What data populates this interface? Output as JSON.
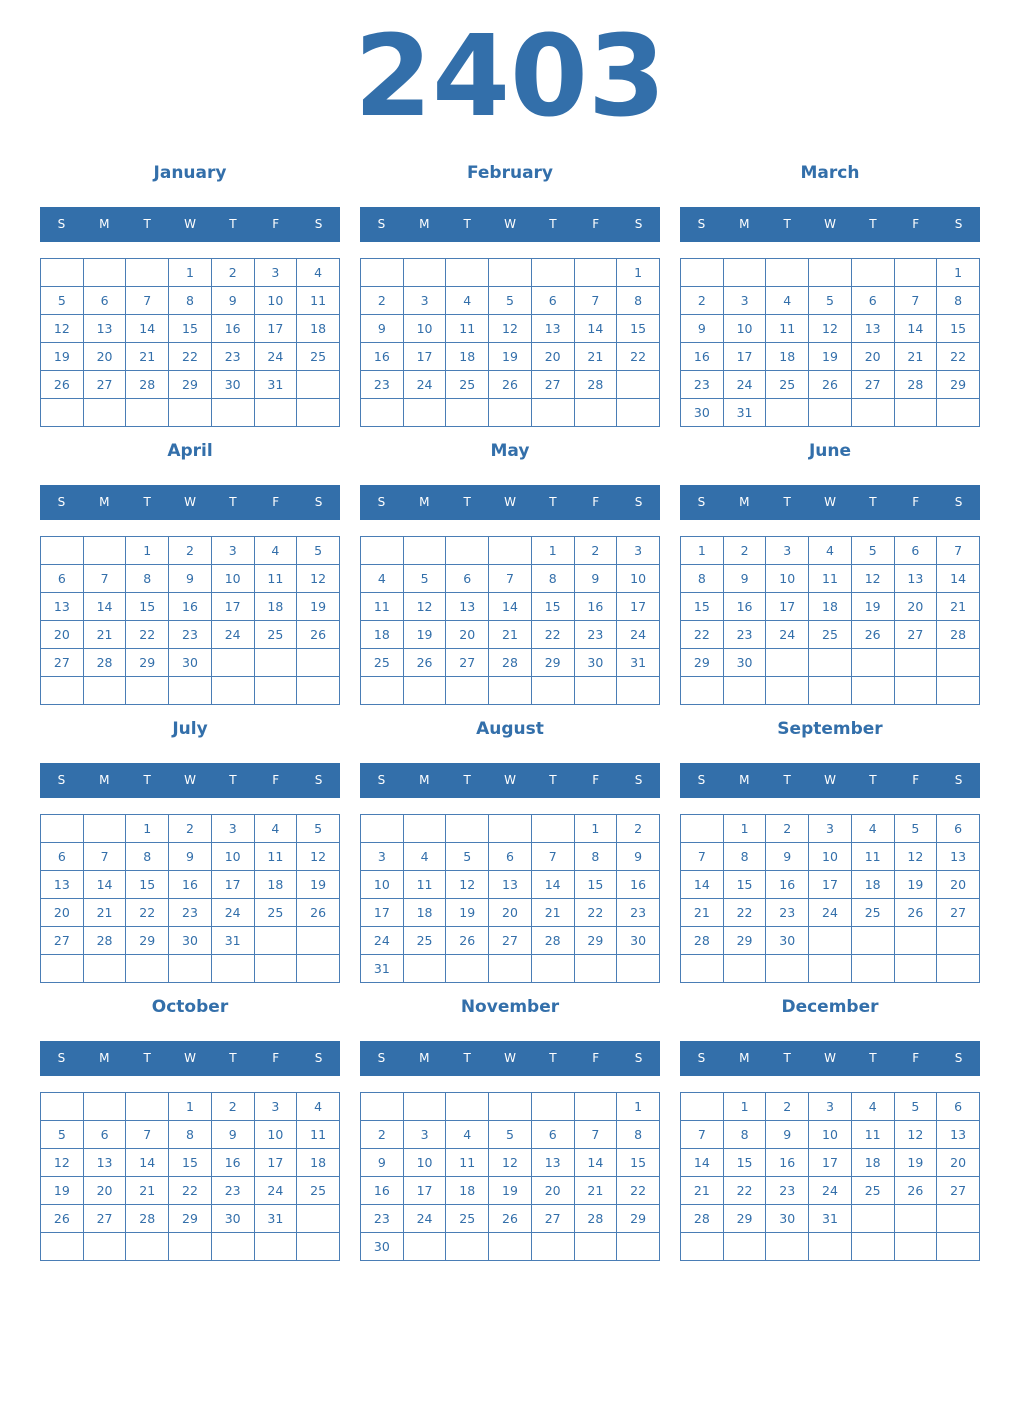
{
  "year": "2403",
  "weekdays": [
    "S",
    "M",
    "T",
    "W",
    "T",
    "F",
    "S"
  ],
  "colors": {
    "accent": "#336faa"
  },
  "months": [
    {
      "name": "January",
      "weeks": [
        [
          "",
          "",
          "",
          1,
          2,
          3,
          4
        ],
        [
          5,
          6,
          7,
          8,
          9,
          10,
          11
        ],
        [
          12,
          13,
          14,
          15,
          16,
          17,
          18
        ],
        [
          19,
          20,
          21,
          22,
          23,
          24,
          25
        ],
        [
          26,
          27,
          28,
          29,
          30,
          31,
          ""
        ],
        [
          "",
          "",
          "",
          "",
          "",
          "",
          ""
        ]
      ]
    },
    {
      "name": "February",
      "weeks": [
        [
          "",
          "",
          "",
          "",
          "",
          "",
          1
        ],
        [
          2,
          3,
          4,
          5,
          6,
          7,
          8
        ],
        [
          9,
          10,
          11,
          12,
          13,
          14,
          15
        ],
        [
          16,
          17,
          18,
          19,
          20,
          21,
          22
        ],
        [
          23,
          24,
          25,
          26,
          27,
          28,
          ""
        ],
        [
          "",
          "",
          "",
          "",
          "",
          "",
          ""
        ]
      ]
    },
    {
      "name": "March",
      "weeks": [
        [
          "",
          "",
          "",
          "",
          "",
          "",
          1
        ],
        [
          2,
          3,
          4,
          5,
          6,
          7,
          8
        ],
        [
          9,
          10,
          11,
          12,
          13,
          14,
          15
        ],
        [
          16,
          17,
          18,
          19,
          20,
          21,
          22
        ],
        [
          23,
          24,
          25,
          26,
          27,
          28,
          29
        ],
        [
          30,
          31,
          "",
          "",
          "",
          "",
          ""
        ]
      ]
    },
    {
      "name": "April",
      "weeks": [
        [
          "",
          "",
          1,
          2,
          3,
          4,
          5
        ],
        [
          6,
          7,
          8,
          9,
          10,
          11,
          12
        ],
        [
          13,
          14,
          15,
          16,
          17,
          18,
          19
        ],
        [
          20,
          21,
          22,
          23,
          24,
          25,
          26
        ],
        [
          27,
          28,
          29,
          30,
          "",
          "",
          ""
        ],
        [
          "",
          "",
          "",
          "",
          "",
          "",
          ""
        ]
      ]
    },
    {
      "name": "May",
      "weeks": [
        [
          "",
          "",
          "",
          "",
          1,
          2,
          3
        ],
        [
          4,
          5,
          6,
          7,
          8,
          9,
          10
        ],
        [
          11,
          12,
          13,
          14,
          15,
          16,
          17
        ],
        [
          18,
          19,
          20,
          21,
          22,
          23,
          24
        ],
        [
          25,
          26,
          27,
          28,
          29,
          30,
          31
        ],
        [
          "",
          "",
          "",
          "",
          "",
          "",
          ""
        ]
      ]
    },
    {
      "name": "June",
      "weeks": [
        [
          1,
          2,
          3,
          4,
          5,
          6,
          7
        ],
        [
          8,
          9,
          10,
          11,
          12,
          13,
          14
        ],
        [
          15,
          16,
          17,
          18,
          19,
          20,
          21
        ],
        [
          22,
          23,
          24,
          25,
          26,
          27,
          28
        ],
        [
          29,
          30,
          "",
          "",
          "",
          "",
          ""
        ],
        [
          "",
          "",
          "",
          "",
          "",
          "",
          ""
        ]
      ]
    },
    {
      "name": "July",
      "weeks": [
        [
          "",
          "",
          1,
          2,
          3,
          4,
          5
        ],
        [
          6,
          7,
          8,
          9,
          10,
          11,
          12
        ],
        [
          13,
          14,
          15,
          16,
          17,
          18,
          19
        ],
        [
          20,
          21,
          22,
          23,
          24,
          25,
          26
        ],
        [
          27,
          28,
          29,
          30,
          31,
          "",
          ""
        ],
        [
          "",
          "",
          "",
          "",
          "",
          "",
          ""
        ]
      ]
    },
    {
      "name": "August",
      "weeks": [
        [
          "",
          "",
          "",
          "",
          "",
          1,
          2
        ],
        [
          3,
          4,
          5,
          6,
          7,
          8,
          9
        ],
        [
          10,
          11,
          12,
          13,
          14,
          15,
          16
        ],
        [
          17,
          18,
          19,
          20,
          21,
          22,
          23
        ],
        [
          24,
          25,
          26,
          27,
          28,
          29,
          30
        ],
        [
          31,
          "",
          "",
          "",
          "",
          "",
          ""
        ]
      ]
    },
    {
      "name": "September",
      "weeks": [
        [
          "",
          1,
          2,
          3,
          4,
          5,
          6
        ],
        [
          7,
          8,
          9,
          10,
          11,
          12,
          13
        ],
        [
          14,
          15,
          16,
          17,
          18,
          19,
          20
        ],
        [
          21,
          22,
          23,
          24,
          25,
          26,
          27
        ],
        [
          28,
          29,
          30,
          "",
          "",
          "",
          ""
        ],
        [
          "",
          "",
          "",
          "",
          "",
          "",
          ""
        ]
      ]
    },
    {
      "name": "October",
      "weeks": [
        [
          "",
          "",
          "",
          1,
          2,
          3,
          4
        ],
        [
          5,
          6,
          7,
          8,
          9,
          10,
          11
        ],
        [
          12,
          13,
          14,
          15,
          16,
          17,
          18
        ],
        [
          19,
          20,
          21,
          22,
          23,
          24,
          25
        ],
        [
          26,
          27,
          28,
          29,
          30,
          31,
          ""
        ],
        [
          "",
          "",
          "",
          "",
          "",
          "",
          ""
        ]
      ]
    },
    {
      "name": "November",
      "weeks": [
        [
          "",
          "",
          "",
          "",
          "",
          "",
          1
        ],
        [
          2,
          3,
          4,
          5,
          6,
          7,
          8
        ],
        [
          9,
          10,
          11,
          12,
          13,
          14,
          15
        ],
        [
          16,
          17,
          18,
          19,
          20,
          21,
          22
        ],
        [
          23,
          24,
          25,
          26,
          27,
          28,
          29
        ],
        [
          30,
          "",
          "",
          "",
          "",
          "",
          ""
        ]
      ]
    },
    {
      "name": "December",
      "weeks": [
        [
          "",
          1,
          2,
          3,
          4,
          5,
          6
        ],
        [
          7,
          8,
          9,
          10,
          11,
          12,
          13
        ],
        [
          14,
          15,
          16,
          17,
          18,
          19,
          20
        ],
        [
          21,
          22,
          23,
          24,
          25,
          26,
          27
        ],
        [
          28,
          29,
          30,
          31,
          "",
          "",
          ""
        ],
        [
          "",
          "",
          "",
          "",
          "",
          "",
          ""
        ]
      ]
    }
  ]
}
